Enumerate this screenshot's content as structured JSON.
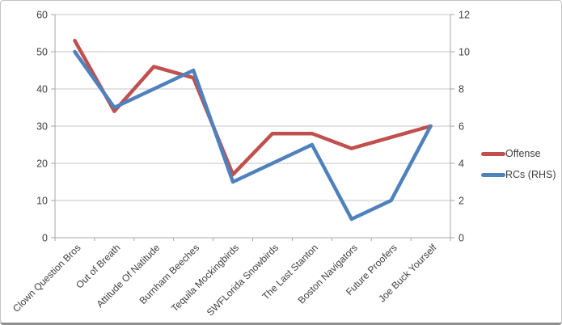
{
  "chart_data": {
    "type": "line",
    "title": "",
    "categories": [
      "Clown Question Bros",
      "Out of Breath",
      "Attitude Of Natitude",
      "Burnham Beeches",
      "Tequila Mockingbirds",
      "SWFLorida Snowbirds",
      "The Last Stanton",
      "Boston Navigators",
      "Future Proofers",
      "Joe Buck Yourself"
    ],
    "series": [
      {
        "name": "Offense",
        "axis": "left",
        "color": "#C0504D",
        "values": [
          53,
          34,
          46,
          43,
          17,
          28,
          28,
          24,
          27,
          30
        ]
      },
      {
        "name": "RCs (RHS)",
        "axis": "right",
        "color": "#4F81BD",
        "values": [
          10,
          7,
          8,
          9,
          3,
          4,
          5,
          1,
          2,
          6
        ]
      }
    ],
    "left_axis": {
      "min": 0,
      "max": 60,
      "ticks": [
        0,
        10,
        20,
        30,
        40,
        50,
        60
      ]
    },
    "right_axis": {
      "min": 0,
      "max": 12,
      "ticks": [
        0,
        2,
        4,
        6,
        8,
        10,
        12
      ]
    },
    "grid": true,
    "legend_position": "right",
    "x_label_rotation_deg": 45
  },
  "colors": {
    "gridline": "#c6c6c6",
    "axis_line": "#a6a6a6",
    "tick_text": "#3f3f3f",
    "background": "#ffffff"
  }
}
